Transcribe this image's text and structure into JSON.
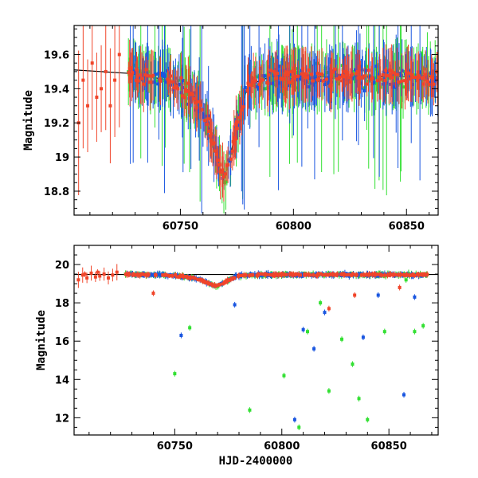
{
  "chart_data": [
    {
      "type": "scatter",
      "title": "",
      "xlabel": "",
      "ylabel": "Magnitude",
      "xlim": [
        60703,
        60864
      ],
      "ylim": [
        19.77,
        18.66
      ],
      "y_inverted": true,
      "x_ticks": [
        60750,
        60800,
        60850
      ],
      "y_ticks": [
        18.8,
        19.0,
        19.2,
        19.4,
        19.6
      ],
      "y_tick_labels": [
        "18.8",
        "19",
        "19.2",
        "19.4",
        "19.6"
      ],
      "colors": {
        "g": "#33e033",
        "b": "#1a56e0",
        "r": "#f0452a",
        "line": "#000000"
      },
      "model_line": [
        [
          60703,
          19.51
        ],
        [
          60727,
          19.49
        ],
        [
          60745,
          19.45
        ],
        [
          60755,
          19.38
        ],
        [
          60762,
          19.2
        ],
        [
          60766,
          19.0
        ],
        [
          60769,
          18.87
        ],
        [
          60772,
          19.0
        ],
        [
          60776,
          19.25
        ],
        [
          60780,
          19.42
        ],
        [
          60790,
          19.47
        ],
        [
          60864,
          19.47
        ]
      ],
      "series": [
        {
          "color_key": "r",
          "values_note": "",
          "points": [
            [
              60705,
              19.2
            ],
            [
              60707,
              19.45
            ],
            [
              60709,
              19.3
            ],
            [
              60711,
              19.55
            ],
            [
              60713,
              19.35
            ],
            [
              60715,
              19.4
            ],
            [
              60717,
              19.5
            ],
            [
              60719,
              19.3
            ],
            [
              60721,
              19.45
            ],
            [
              60723,
              19.6
            ]
          ]
        },
        {
          "color_key": "g",
          "points": []
        },
        {
          "color_key": "b",
          "points": []
        }
      ]
    },
    {
      "type": "scatter",
      "title": "",
      "xlabel": "HJD-2400000",
      "ylabel": "Magnitude",
      "xlim": [
        60703,
        60873
      ],
      "ylim": [
        21.0,
        11.1
      ],
      "y_inverted": true,
      "x_ticks": [
        60750,
        60800,
        60850
      ],
      "y_ticks": [
        12,
        14,
        16,
        18,
        20
      ],
      "y_tick_labels": [
        "12",
        "14",
        "16",
        "18",
        "20"
      ],
      "model_line_y": 19.48,
      "outliers": {
        "g": [
          [
            60750,
            14.3
          ],
          [
            60757,
            16.7
          ],
          [
            60785,
            12.4
          ],
          [
            60801,
            14.2
          ],
          [
            60808,
            11.5
          ],
          [
            60812,
            16.5
          ],
          [
            60818,
            18.0
          ],
          [
            60822,
            13.4
          ],
          [
            60828,
            16.1
          ],
          [
            60833,
            14.8
          ],
          [
            60836,
            13.0
          ],
          [
            60840,
            11.9
          ],
          [
            60848,
            16.5
          ],
          [
            60858,
            19.2
          ],
          [
            60862,
            16.5
          ],
          [
            60866,
            16.8
          ]
        ],
        "b": [
          [
            60753,
            16.3
          ],
          [
            60778,
            17.9
          ],
          [
            60806,
            11.9
          ],
          [
            60810,
            16.6
          ],
          [
            60815,
            15.6
          ],
          [
            60820,
            17.5
          ],
          [
            60838,
            16.2
          ],
          [
            60845,
            18.4
          ],
          [
            60857,
            13.2
          ],
          [
            60862,
            18.3
          ]
        ],
        "r": [
          [
            60708,
            19.5
          ],
          [
            60714,
            19.6
          ],
          [
            60740,
            18.5
          ],
          [
            60822,
            17.7
          ],
          [
            60834,
            18.4
          ],
          [
            60855,
            18.8
          ]
        ]
      }
    }
  ]
}
